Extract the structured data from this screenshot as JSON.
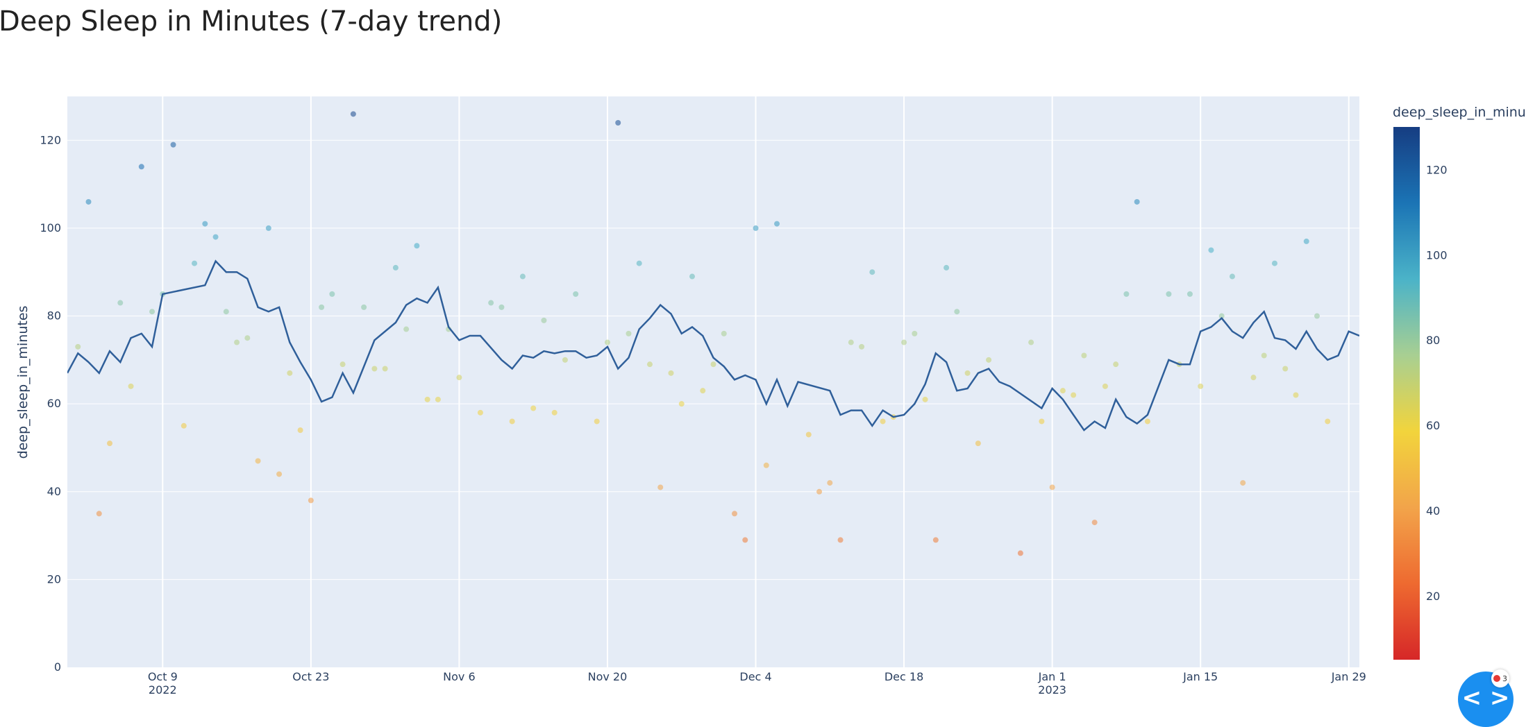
{
  "chart_data": {
    "type": "scatter",
    "title": "Deep Sleep in Minutes (7-day trend)",
    "ylabel": "deep_sleep_in_minutes",
    "xlabel": "",
    "ylim": [
      0,
      130
    ],
    "yticks": [
      0,
      20,
      40,
      60,
      80,
      100,
      120
    ],
    "xlim": [
      "2022-09-30",
      "2023-01-30"
    ],
    "xticks": [
      {
        "date": "2022-10-09",
        "label": "Oct 9",
        "year": "2022"
      },
      {
        "date": "2022-10-23",
        "label": "Oct 23",
        "year": ""
      },
      {
        "date": "2022-11-06",
        "label": "Nov 6",
        "year": ""
      },
      {
        "date": "2022-11-20",
        "label": "Nov 20",
        "year": ""
      },
      {
        "date": "2022-12-04",
        "label": "Dec 4",
        "year": ""
      },
      {
        "date": "2022-12-18",
        "label": "Dec 18",
        "year": ""
      },
      {
        "date": "2023-01-01",
        "label": "Jan 1",
        "year": "2023"
      },
      {
        "date": "2023-01-15",
        "label": "Jan 15",
        "year": ""
      },
      {
        "date": "2023-01-29",
        "label": "Jan 29",
        "year": ""
      }
    ],
    "grid": true,
    "colorbar": {
      "title": "deep_sleep_in_minutes",
      "range": [
        5,
        130
      ],
      "ticks": [
        20,
        40,
        60,
        80,
        100,
        120
      ],
      "colors": [
        "#d62728",
        "#ee6a30",
        "#f2a44a",
        "#f2d43c",
        "#a8cf92",
        "#4bb3c8",
        "#1b74b5",
        "#163d82"
      ]
    },
    "line_color": "#2f5f9a",
    "points": [
      {
        "x": "2022-10-01",
        "y": 73
      },
      {
        "x": "2022-10-02",
        "y": 106
      },
      {
        "x": "2022-10-03",
        "y": 35
      },
      {
        "x": "2022-10-04",
        "y": 51
      },
      {
        "x": "2022-10-05",
        "y": 83
      },
      {
        "x": "2022-10-06",
        "y": 64
      },
      {
        "x": "2022-10-07",
        "y": 114
      },
      {
        "x": "2022-10-08",
        "y": 81
      },
      {
        "x": "2022-10-09",
        "y": 85
      },
      {
        "x": "2022-10-10",
        "y": 119
      },
      {
        "x": "2022-10-11",
        "y": 55
      },
      {
        "x": "2022-10-12",
        "y": 92
      },
      {
        "x": "2022-10-13",
        "y": 101
      },
      {
        "x": "2022-10-14",
        "y": 98
      },
      {
        "x": "2022-10-15",
        "y": 81
      },
      {
        "x": "2022-10-16",
        "y": 74
      },
      {
        "x": "2022-10-17",
        "y": 75
      },
      {
        "x": "2022-10-18",
        "y": 47
      },
      {
        "x": "2022-10-19",
        "y": 100
      },
      {
        "x": "2022-10-20",
        "y": 44
      },
      {
        "x": "2022-10-21",
        "y": 67
      },
      {
        "x": "2022-10-22",
        "y": 54
      },
      {
        "x": "2022-10-23",
        "y": 38
      },
      {
        "x": "2022-10-24",
        "y": 82
      },
      {
        "x": "2022-10-25",
        "y": 85
      },
      {
        "x": "2022-10-26",
        "y": 69
      },
      {
        "x": "2022-10-27",
        "y": 126
      },
      {
        "x": "2022-10-28",
        "y": 82
      },
      {
        "x": "2022-10-29",
        "y": 68
      },
      {
        "x": "2022-10-30",
        "y": 68
      },
      {
        "x": "2022-10-31",
        "y": 91
      },
      {
        "x": "2022-11-01",
        "y": 77
      },
      {
        "x": "2022-11-02",
        "y": 96
      },
      {
        "x": "2022-11-03",
        "y": 61
      },
      {
        "x": "2022-11-04",
        "y": 61
      },
      {
        "x": "2022-11-05",
        "y": 77
      },
      {
        "x": "2022-11-06",
        "y": 66
      },
      {
        "x": "2022-11-08",
        "y": 58
      },
      {
        "x": "2022-11-09",
        "y": 83
      },
      {
        "x": "2022-11-10",
        "y": 82
      },
      {
        "x": "2022-11-11",
        "y": 56
      },
      {
        "x": "2022-11-12",
        "y": 89
      },
      {
        "x": "2022-11-13",
        "y": 59
      },
      {
        "x": "2022-11-14",
        "y": 79
      },
      {
        "x": "2022-11-15",
        "y": 58
      },
      {
        "x": "2022-11-16",
        "y": 70
      },
      {
        "x": "2022-11-17",
        "y": 85
      },
      {
        "x": "2022-11-19",
        "y": 56
      },
      {
        "x": "2022-11-20",
        "y": 74
      },
      {
        "x": "2022-11-21",
        "y": 124
      },
      {
        "x": "2022-11-22",
        "y": 76
      },
      {
        "x": "2022-11-23",
        "y": 92
      },
      {
        "x": "2022-11-24",
        "y": 69
      },
      {
        "x": "2022-11-25",
        "y": 41
      },
      {
        "x": "2022-11-26",
        "y": 67
      },
      {
        "x": "2022-11-27",
        "y": 60
      },
      {
        "x": "2022-11-28",
        "y": 89
      },
      {
        "x": "2022-11-29",
        "y": 63
      },
      {
        "x": "2022-11-30",
        "y": 69
      },
      {
        "x": "2022-12-01",
        "y": 76
      },
      {
        "x": "2022-12-02",
        "y": 35
      },
      {
        "x": "2022-12-03",
        "y": 29
      },
      {
        "x": "2022-12-04",
        "y": 100
      },
      {
        "x": "2022-12-05",
        "y": 46
      },
      {
        "x": "2022-12-06",
        "y": 101
      },
      {
        "x": "2022-12-09",
        "y": 53
      },
      {
        "x": "2022-12-10",
        "y": 40
      },
      {
        "x": "2022-12-11",
        "y": 42
      },
      {
        "x": "2022-12-12",
        "y": 29
      },
      {
        "x": "2022-12-13",
        "y": 74
      },
      {
        "x": "2022-12-14",
        "y": 73
      },
      {
        "x": "2022-12-15",
        "y": 90
      },
      {
        "x": "2022-12-16",
        "y": 56
      },
      {
        "x": "2022-12-17",
        "y": 57
      },
      {
        "x": "2022-12-18",
        "y": 74
      },
      {
        "x": "2022-12-19",
        "y": 76
      },
      {
        "x": "2022-12-20",
        "y": 61
      },
      {
        "x": "2022-12-21",
        "y": 29
      },
      {
        "x": "2022-12-22",
        "y": 91
      },
      {
        "x": "2022-12-23",
        "y": 81
      },
      {
        "x": "2022-12-24",
        "y": 67
      },
      {
        "x": "2022-12-25",
        "y": 51
      },
      {
        "x": "2022-12-26",
        "y": 70
      },
      {
        "x": "2022-12-29",
        "y": 26
      },
      {
        "x": "2022-12-30",
        "y": 74
      },
      {
        "x": "2022-12-31",
        "y": 56
      },
      {
        "x": "2023-01-01",
        "y": 41
      },
      {
        "x": "2023-01-02",
        "y": 63
      },
      {
        "x": "2023-01-03",
        "y": 62
      },
      {
        "x": "2023-01-04",
        "y": 71
      },
      {
        "x": "2023-01-05",
        "y": 33
      },
      {
        "x": "2023-01-06",
        "y": 64
      },
      {
        "x": "2023-01-07",
        "y": 69
      },
      {
        "x": "2023-01-08",
        "y": 85
      },
      {
        "x": "2023-01-09",
        "y": 106
      },
      {
        "x": "2023-01-10",
        "y": 56
      },
      {
        "x": "2023-01-12",
        "y": 85
      },
      {
        "x": "2023-01-13",
        "y": 69
      },
      {
        "x": "2023-01-14",
        "y": 85
      },
      {
        "x": "2023-01-15",
        "y": 64
      },
      {
        "x": "2023-01-16",
        "y": 95
      },
      {
        "x": "2023-01-17",
        "y": 80
      },
      {
        "x": "2023-01-18",
        "y": 89
      },
      {
        "x": "2023-01-19",
        "y": 42
      },
      {
        "x": "2023-01-20",
        "y": 66
      },
      {
        "x": "2023-01-21",
        "y": 71
      },
      {
        "x": "2023-01-22",
        "y": 92
      },
      {
        "x": "2023-01-23",
        "y": 68
      },
      {
        "x": "2023-01-24",
        "y": 62
      },
      {
        "x": "2023-01-25",
        "y": 97
      },
      {
        "x": "2023-01-26",
        "y": 80
      },
      {
        "x": "2023-01-27",
        "y": 56
      }
    ],
    "trend": [
      {
        "x": "2022-09-30",
        "y": 67
      },
      {
        "x": "2022-10-01",
        "y": 71.5
      },
      {
        "x": "2022-10-02",
        "y": 69.5
      },
      {
        "x": "2022-10-03",
        "y": 67
      },
      {
        "x": "2022-10-04",
        "y": 72
      },
      {
        "x": "2022-10-05",
        "y": 69.5
      },
      {
        "x": "2022-10-06",
        "y": 75
      },
      {
        "x": "2022-10-07",
        "y": 76
      },
      {
        "x": "2022-10-08",
        "y": 73
      },
      {
        "x": "2022-10-09",
        "y": 85
      },
      {
        "x": "2022-10-13",
        "y": 87
      },
      {
        "x": "2022-10-14",
        "y": 92.5
      },
      {
        "x": "2022-10-15",
        "y": 90
      },
      {
        "x": "2022-10-16",
        "y": 90
      },
      {
        "x": "2022-10-17",
        "y": 88.5
      },
      {
        "x": "2022-10-18",
        "y": 82
      },
      {
        "x": "2022-10-19",
        "y": 81
      },
      {
        "x": "2022-10-20",
        "y": 82
      },
      {
        "x": "2022-10-21",
        "y": 74
      },
      {
        "x": "2022-10-22",
        "y": 69.5
      },
      {
        "x": "2022-10-23",
        "y": 65.5
      },
      {
        "x": "2022-10-24",
        "y": 60.5
      },
      {
        "x": "2022-10-25",
        "y": 61.5
      },
      {
        "x": "2022-10-26",
        "y": 67
      },
      {
        "x": "2022-10-27",
        "y": 62.5
      },
      {
        "x": "2022-10-29",
        "y": 74.5
      },
      {
        "x": "2022-10-31",
        "y": 78.5
      },
      {
        "x": "2022-11-01",
        "y": 82.5
      },
      {
        "x": "2022-11-02",
        "y": 84
      },
      {
        "x": "2022-11-03",
        "y": 83
      },
      {
        "x": "2022-11-04",
        "y": 86.5
      },
      {
        "x": "2022-11-05",
        "y": 77.5
      },
      {
        "x": "2022-11-06",
        "y": 74.5
      },
      {
        "x": "2022-11-07",
        "y": 75.5
      },
      {
        "x": "2022-11-08",
        "y": 75.5
      },
      {
        "x": "2022-11-10",
        "y": 70
      },
      {
        "x": "2022-11-11",
        "y": 68
      },
      {
        "x": "2022-11-12",
        "y": 71
      },
      {
        "x": "2022-11-13",
        "y": 70.5
      },
      {
        "x": "2022-11-14",
        "y": 72
      },
      {
        "x": "2022-11-15",
        "y": 71.5
      },
      {
        "x": "2022-11-16",
        "y": 72
      },
      {
        "x": "2022-11-17",
        "y": 72
      },
      {
        "x": "2022-11-18",
        "y": 70.5
      },
      {
        "x": "2022-11-19",
        "y": 71
      },
      {
        "x": "2022-11-20",
        "y": 73
      },
      {
        "x": "2022-11-21",
        "y": 68
      },
      {
        "x": "2022-11-22",
        "y": 70.5
      },
      {
        "x": "2022-11-23",
        "y": 77
      },
      {
        "x": "2022-11-24",
        "y": 79.5
      },
      {
        "x": "2022-11-25",
        "y": 82.5
      },
      {
        "x": "2022-11-26",
        "y": 80.5
      },
      {
        "x": "2022-11-27",
        "y": 76
      },
      {
        "x": "2022-11-28",
        "y": 77.5
      },
      {
        "x": "2022-11-29",
        "y": 75.5
      },
      {
        "x": "2022-11-30",
        "y": 70.5
      },
      {
        "x": "2022-12-01",
        "y": 68.5
      },
      {
        "x": "2022-12-02",
        "y": 65.5
      },
      {
        "x": "2022-12-03",
        "y": 66.5
      },
      {
        "x": "2022-12-04",
        "y": 65.5
      },
      {
        "x": "2022-12-05",
        "y": 60
      },
      {
        "x": "2022-12-06",
        "y": 65.5
      },
      {
        "x": "2022-12-07",
        "y": 59.5
      },
      {
        "x": "2022-12-08",
        "y": 65
      },
      {
        "x": "2022-12-11",
        "y": 63
      },
      {
        "x": "2022-12-12",
        "y": 57.5
      },
      {
        "x": "2022-12-13",
        "y": 58.5
      },
      {
        "x": "2022-12-14",
        "y": 58.5
      },
      {
        "x": "2022-12-15",
        "y": 55
      },
      {
        "x": "2022-12-16",
        "y": 58.5
      },
      {
        "x": "2022-12-17",
        "y": 57
      },
      {
        "x": "2022-12-18",
        "y": 57.5
      },
      {
        "x": "2022-12-19",
        "y": 60
      },
      {
        "x": "2022-12-20",
        "y": 64.5
      },
      {
        "x": "2022-12-21",
        "y": 71.5
      },
      {
        "x": "2022-12-22",
        "y": 69.5
      },
      {
        "x": "2022-12-23",
        "y": 63
      },
      {
        "x": "2022-12-24",
        "y": 63.5
      },
      {
        "x": "2022-12-25",
        "y": 67
      },
      {
        "x": "2022-12-26",
        "y": 68
      },
      {
        "x": "2022-12-27",
        "y": 65
      },
      {
        "x": "2022-12-28",
        "y": 64
      },
      {
        "x": "2022-12-31",
        "y": 59
      },
      {
        "x": "2023-01-01",
        "y": 63.5
      },
      {
        "x": "2023-01-02",
        "y": 61
      },
      {
        "x": "2023-01-03",
        "y": 57.5
      },
      {
        "x": "2023-01-04",
        "y": 54
      },
      {
        "x": "2023-01-05",
        "y": 56
      },
      {
        "x": "2023-01-06",
        "y": 54.5
      },
      {
        "x": "2023-01-07",
        "y": 61
      },
      {
        "x": "2023-01-08",
        "y": 57
      },
      {
        "x": "2023-01-09",
        "y": 55.5
      },
      {
        "x": "2023-01-10",
        "y": 57.5
      },
      {
        "x": "2023-01-12",
        "y": 70
      },
      {
        "x": "2023-01-13",
        "y": 69
      },
      {
        "x": "2023-01-14",
        "y": 69
      },
      {
        "x": "2023-01-15",
        "y": 76.5
      },
      {
        "x": "2023-01-16",
        "y": 77.5
      },
      {
        "x": "2023-01-17",
        "y": 79.5
      },
      {
        "x": "2023-01-18",
        "y": 76.5
      },
      {
        "x": "2023-01-19",
        "y": 75
      },
      {
        "x": "2023-01-20",
        "y": 78.5
      },
      {
        "x": "2023-01-21",
        "y": 81
      },
      {
        "x": "2023-01-22",
        "y": 75
      },
      {
        "x": "2023-01-23",
        "y": 74.5
      },
      {
        "x": "2023-01-24",
        "y": 72.5
      },
      {
        "x": "2023-01-25",
        "y": 76.5
      },
      {
        "x": "2023-01-26",
        "y": 72.5
      },
      {
        "x": "2023-01-27",
        "y": 70
      },
      {
        "x": "2023-01-28",
        "y": 71
      },
      {
        "x": "2023-01-29",
        "y": 76.5
      },
      {
        "x": "2023-01-30",
        "y": 75.5
      }
    ]
  },
  "widget": {
    "badge_count": "3",
    "button_icon": "code-brackets-icon",
    "button_glyph": "< >"
  }
}
